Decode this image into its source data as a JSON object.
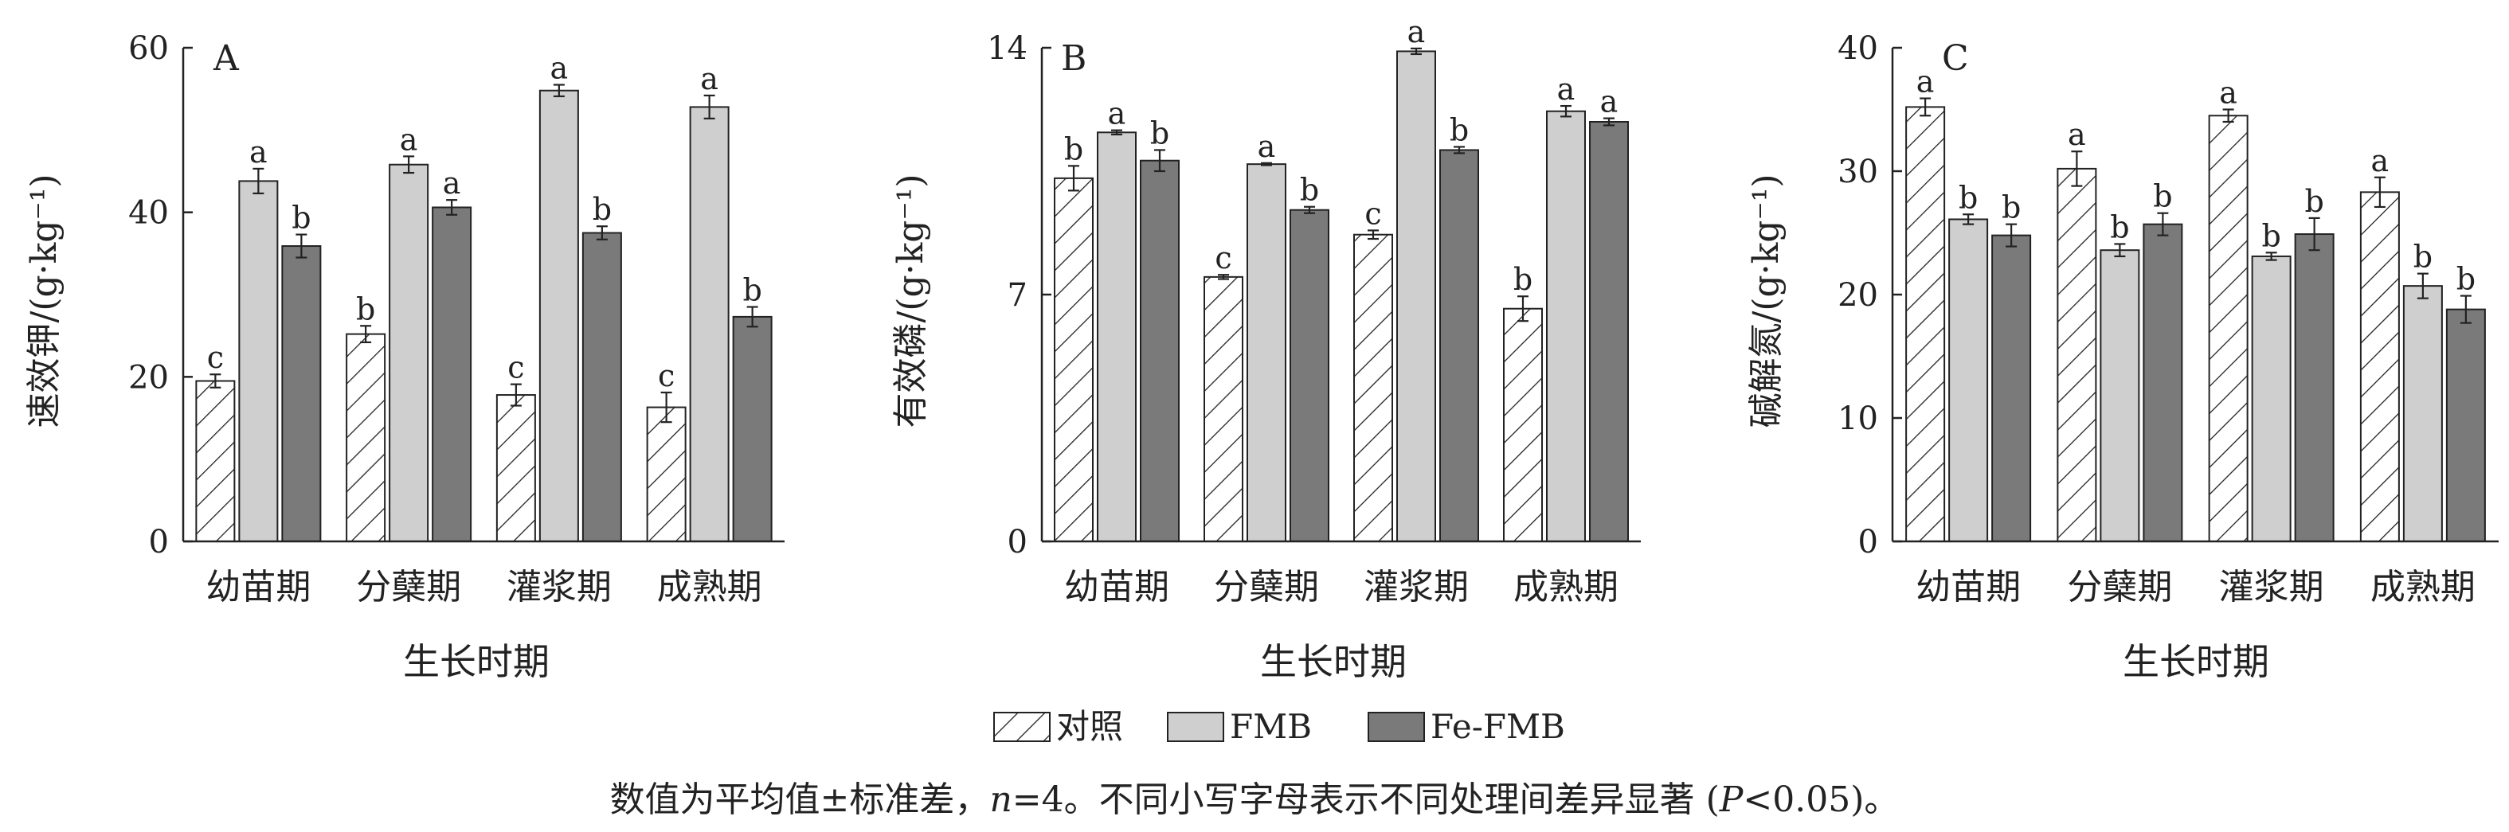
{
  "colors": {
    "control_hatch": "#222222",
    "fmb": "#cfcfcf",
    "fefmb": "#7a7a7a",
    "axis": "#222222"
  },
  "legend": {
    "items": [
      "对照",
      "FMB",
      "Fe-FMB"
    ]
  },
  "footnote": {
    "text1": "数值为平均值±标准差，",
    "n_label": "n",
    "text2": "=4。不同小写字母表示不同处理间差异显著 (",
    "p_label": "P",
    "text3": "<0.05)。"
  },
  "chart_data": [
    {
      "type": "bar",
      "panel_label": "A",
      "ylabel": "速效钾/(g·kg⁻¹)",
      "xlabel": "生长时期",
      "categories": [
        "幼苗期",
        "分蘖期",
        "灌浆期",
        "成熟期"
      ],
      "ylim": [
        0,
        60
      ],
      "yticks": [
        0,
        20,
        40,
        60
      ],
      "series": [
        {
          "name": "对照",
          "values": [
            19.5,
            25.2,
            17.8,
            16.3
          ],
          "errors": [
            0.8,
            1.0,
            1.3,
            1.8
          ],
          "letters": [
            "c",
            "b",
            "c",
            "c"
          ]
        },
        {
          "name": "FMB",
          "values": [
            43.8,
            45.8,
            54.8,
            52.8
          ],
          "errors": [
            1.5,
            1.0,
            0.7,
            1.4
          ],
          "letters": [
            "a",
            "a",
            "a",
            "a"
          ]
        },
        {
          "name": "Fe-FMB",
          "values": [
            35.9,
            40.6,
            37.5,
            27.3
          ],
          "errors": [
            1.4,
            0.9,
            0.8,
            1.2
          ],
          "letters": [
            "b",
            "a",
            "b",
            "b"
          ]
        }
      ]
    },
    {
      "type": "bar",
      "panel_label": "B",
      "ylabel": "有效磷/(g·kg⁻¹)",
      "xlabel": "",
      "categories": [
        "幼苗期",
        "分蘖期",
        "灌浆期",
        "成熟期"
      ],
      "ylim": [
        0,
        14
      ],
      "yticks": [
        0,
        7,
        14
      ],
      "series": [
        {
          "name": "对照",
          "values": [
            10.3,
            7.5,
            8.7,
            6.6
          ],
          "errors": [
            0.35,
            0.06,
            0.12,
            0.35
          ],
          "letters": [
            "b",
            "c",
            "c",
            "b"
          ]
        },
        {
          "name": "FMB",
          "values": [
            11.6,
            10.7,
            13.9,
            12.2
          ],
          "errors": [
            0.06,
            0.03,
            0.08,
            0.15
          ],
          "letters": [
            "a",
            "a",
            "a",
            "a"
          ]
        },
        {
          "name": "Fe-FMB",
          "values": [
            10.8,
            9.4,
            11.1,
            11.9
          ],
          "errors": [
            0.3,
            0.09,
            0.09,
            0.1
          ],
          "letters": [
            "b",
            "b",
            "b",
            "a"
          ]
        }
      ]
    },
    {
      "type": "bar",
      "panel_label": "C",
      "ylabel": "碱解氮/(g·kg⁻¹)",
      "xlabel": "生长时期",
      "categories": [
        "幼苗期",
        "分蘖期",
        "灌浆期",
        "成熟期"
      ],
      "ylim": [
        0,
        40
      ],
      "yticks": [
        0,
        10,
        20,
        30,
        40
      ],
      "series": [
        {
          "name": "对照",
          "values": [
            35.2,
            30.2,
            34.5,
            28.3
          ],
          "errors": [
            0.7,
            1.4,
            0.5,
            1.2
          ],
          "letters": [
            "a",
            "a",
            "a",
            "a"
          ]
        },
        {
          "name": "FMB",
          "values": [
            26.1,
            23.6,
            23.1,
            20.7
          ],
          "errors": [
            0.4,
            0.5,
            0.3,
            1.0
          ],
          "letters": [
            "b",
            "b",
            "b",
            "b"
          ]
        },
        {
          "name": "Fe-FMB",
          "values": [
            24.8,
            25.7,
            24.9,
            18.8
          ],
          "errors": [
            0.9,
            0.9,
            1.3,
            1.1
          ],
          "letters": [
            "b",
            "b",
            "b",
            "b"
          ]
        }
      ]
    }
  ]
}
